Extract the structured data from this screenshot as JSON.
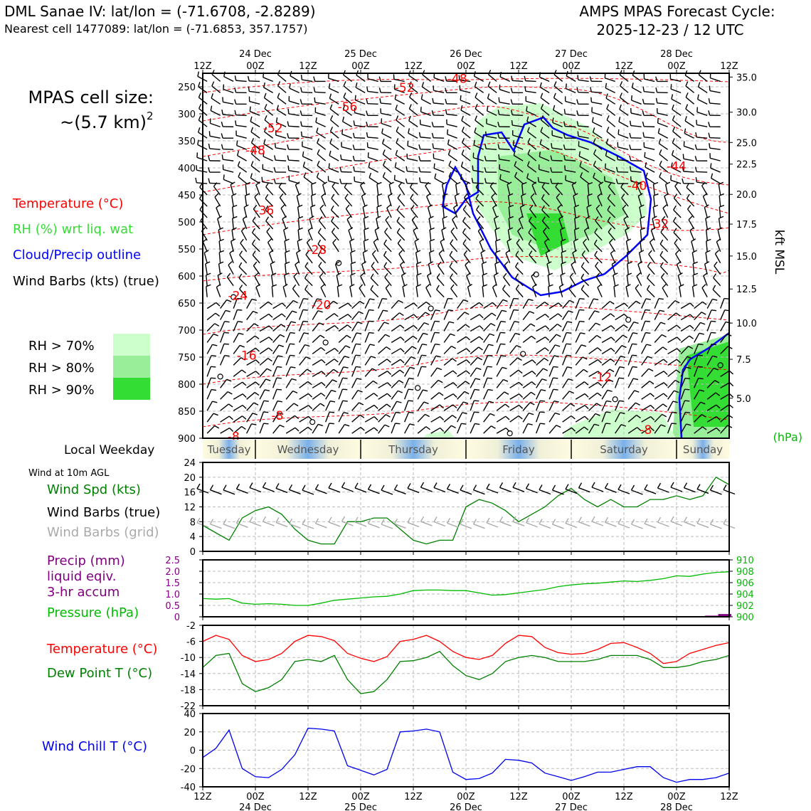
{
  "header": {
    "station_line": "DML Sanae IV: lat/lon = (-71.6708, -2.8289)",
    "cell_line": "Nearest cell 1477089: lat/lon = (-71.6853, 357.1757)",
    "cycle_title": "AMPS MPAS Forecast Cycle:",
    "cycle_time": "2025-12-23 / 12 UTC"
  },
  "legend": {
    "cell_size_label": "MPAS cell size:",
    "cell_size_value": "~(5.7 km)",
    "cell_size_exp": "2",
    "temperature": "Temperature (°C)",
    "rh": "RH (%) wrt liq. wat",
    "cloud": "Cloud/Precip outline",
    "barbs": "Wind Barbs (kts) (true)",
    "rh70": "RH > 70%",
    "rh80": "RH > 80%",
    "rh90": "RH > 90%",
    "local_weekday": "Local Weekday",
    "wind_10m": "Wind at 10m AGL",
    "wind_spd": "Wind Spd (kts)",
    "wind_barbs_true": "Wind Barbs (true)",
    "wind_barbs_grid": "Wind Barbs (grid)",
    "precip1": "Precip (mm)",
    "precip2": "liquid eqiv.",
    "precip3": "3-hr accum",
    "pressure": "Pressure (hPa)",
    "hpa_unit": "(hPa)",
    "temp2": "Temperature (°C)",
    "dewpoint": "Dew Point T (°C)",
    "windchill": "Wind Chill T (°C)",
    "kft": "kft MSL"
  },
  "colors": {
    "temp": "#ff0000",
    "rh_text": "#33dd33",
    "cloud": "#0000ff",
    "spd": "#008000",
    "grid_barb": "#aaaaaa",
    "precip": "#800080",
    "pres": "#00bb00",
    "chill": "#0000ee",
    "rh70": "#ccffcc",
    "rh80": "#99ee99",
    "rh90": "#33dd33"
  },
  "time_axis": {
    "top_hours": [
      "12Z",
      "00Z",
      "12Z",
      "00Z",
      "12Z",
      "00Z",
      "12Z",
      "00Z",
      "12Z",
      "00Z",
      "12Z"
    ],
    "day_labels": [
      "24 Dec",
      "25 Dec",
      "26 Dec",
      "27 Dec",
      "28 Dec"
    ],
    "weekdays": [
      "Tuesday",
      "Wednesday",
      "Thursday",
      "Friday",
      "Saturday",
      "Sunday"
    ]
  },
  "chart_data": [
    {
      "type": "heatmap",
      "name": "cross-section",
      "x": "forecast hour 0-120 (12Z 23 Dec to 12Z 28 Dec)",
      "ylabel": "pressure (hPa)",
      "ylim": [
        900,
        225
      ],
      "y_ticks": [
        250,
        300,
        350,
        400,
        450,
        500,
        550,
        600,
        650,
        700,
        750,
        800,
        850,
        900
      ],
      "right_ticks": [
        35.0,
        30.0,
        25.0,
        22.5,
        20.0,
        17.5,
        15.0,
        12.5,
        10.0,
        7.5,
        5.0
      ],
      "right_tick_p": [
        232,
        297,
        353,
        393,
        449,
        504,
        563,
        624,
        687,
        754,
        826
      ],
      "temp_labels": [
        {
          "t": 10,
          "p": 747,
          "text": "-16"
        },
        {
          "t": 8,
          "p": 636,
          "text": "-24"
        },
        {
          "t": 27,
          "p": 653,
          "text": "-20"
        },
        {
          "t": 26,
          "p": 551,
          "text": "-28"
        },
        {
          "t": 14,
          "p": 478,
          "text": "-36"
        },
        {
          "t": 12,
          "p": 367,
          "text": "-48"
        },
        {
          "t": 16,
          "p": 326,
          "text": "-52"
        },
        {
          "t": 33,
          "p": 287,
          "text": "-56"
        },
        {
          "t": 46,
          "p": 251,
          "text": "-52"
        },
        {
          "t": 58,
          "p": 235,
          "text": "-48"
        },
        {
          "t": 108,
          "p": 397,
          "text": "-44"
        },
        {
          "t": 99,
          "p": 433,
          "text": "-40"
        },
        {
          "t": 104,
          "p": 503,
          "text": "-32"
        },
        {
          "t": 91,
          "p": 787,
          "text": "-12"
        },
        {
          "t": 17,
          "p": 858,
          "text": "-8"
        },
        {
          "t": 101,
          "p": 884,
          "text": "-8"
        },
        {
          "t": 7,
          "p": 897,
          "text": "-8"
        }
      ]
    },
    {
      "type": "line",
      "name": "wind-10m",
      "ylim": [
        0,
        24
      ],
      "y_ticks": [
        0,
        4,
        8,
        12,
        16,
        20,
        24
      ],
      "x": [
        0,
        3,
        6,
        9,
        12,
        15,
        18,
        21,
        24,
        27,
        30,
        33,
        36,
        39,
        42,
        45,
        48,
        51,
        54,
        57,
        60,
        63,
        66,
        69,
        72,
        75,
        78,
        81,
        84,
        87,
        90,
        93,
        96,
        99,
        102,
        105,
        108,
        111,
        114,
        117,
        120
      ],
      "series": [
        {
          "name": "Wind Spd (kts)",
          "values": [
            7,
            5,
            3,
            9,
            11,
            12,
            10,
            6,
            3,
            2,
            2,
            8,
            8,
            9,
            9,
            6,
            3,
            2,
            3,
            3,
            12,
            14,
            13,
            11,
            8,
            10,
            12,
            15,
            17,
            14,
            12,
            14,
            12,
            12,
            14,
            14,
            15,
            14,
            15,
            20,
            18
          ]
        }
      ]
    },
    {
      "type": "bar+line",
      "name": "precip-pressure",
      "precip_ylim": [
        0,
        2.5
      ],
      "precip_ticks": [
        0,
        0.5,
        1.0,
        1.5,
        2.0,
        2.5
      ],
      "pressure_ylim": [
        900,
        910
      ],
      "pressure_ticks": [
        900,
        902,
        904,
        906,
        908,
        910
      ],
      "x": [
        0,
        3,
        6,
        9,
        12,
        15,
        18,
        21,
        24,
        27,
        30,
        33,
        36,
        39,
        42,
        45,
        48,
        51,
        54,
        57,
        60,
        63,
        66,
        69,
        72,
        75,
        78,
        81,
        84,
        87,
        90,
        93,
        96,
        99,
        102,
        105,
        108,
        111,
        114,
        117,
        120
      ],
      "pressure": [
        903.2,
        903.1,
        903.2,
        902.4,
        902.2,
        902.3,
        902.2,
        902.0,
        902.0,
        902.4,
        902.9,
        903.1,
        903.3,
        903.5,
        903.6,
        904.0,
        904.6,
        904.7,
        904.7,
        904.6,
        904.6,
        904.2,
        903.8,
        903.9,
        904.2,
        904.5,
        904.8,
        905.3,
        905.6,
        905.8,
        905.9,
        906.1,
        906.3,
        906.2,
        906.4,
        906.7,
        907.2,
        907.1,
        907.5,
        907.8,
        907.9
      ],
      "precip_bars": [
        {
          "t": 116,
          "mm": 0.05
        },
        {
          "t": 119,
          "mm": 0.12
        }
      ]
    },
    {
      "type": "line",
      "name": "temp-dewpoint",
      "ylim": [
        -22,
        -2
      ],
      "y_ticks": [
        -2,
        -6,
        -10,
        -14,
        -18,
        -22
      ],
      "x": [
        0,
        3,
        6,
        9,
        12,
        15,
        18,
        21,
        24,
        27,
        30,
        33,
        36,
        39,
        42,
        45,
        48,
        51,
        54,
        57,
        60,
        63,
        66,
        69,
        72,
        75,
        78,
        81,
        84,
        87,
        90,
        93,
        96,
        99,
        102,
        105,
        108,
        111,
        114,
        117,
        120
      ],
      "series": [
        {
          "name": "Temperature (°C)",
          "values": [
            -6,
            -4.5,
            -5.5,
            -9.5,
            -11,
            -10.5,
            -9,
            -6,
            -4.5,
            -4.8,
            -5.8,
            -9,
            -10.2,
            -11,
            -9.8,
            -6,
            -5.5,
            -4.5,
            -6,
            -8.5,
            -10,
            -10.5,
            -9.5,
            -6.5,
            -4.5,
            -4.8,
            -7.5,
            -8.8,
            -9.2,
            -9,
            -8,
            -6.5,
            -6.3,
            -7.5,
            -9,
            -11.5,
            -11,
            -9,
            -8,
            -7,
            -6.3
          ]
        },
        {
          "name": "Dew Point T (°C)",
          "values": [
            -12.5,
            -9.5,
            -9,
            -16.5,
            -18.5,
            -17.5,
            -15.5,
            -11,
            -10.5,
            -11,
            -9.5,
            -15.5,
            -19,
            -18.5,
            -15.5,
            -11,
            -10.8,
            -10,
            -8.5,
            -12,
            -14.5,
            -15.5,
            -14,
            -11,
            -10,
            -9.5,
            -10,
            -11,
            -11,
            -11,
            -10.5,
            -9.5,
            -9.5,
            -9.5,
            -10.5,
            -12.5,
            -12.5,
            -12,
            -11,
            -10.5,
            -9.5
          ]
        }
      ]
    },
    {
      "type": "line",
      "name": "wind-chill",
      "ylim": [
        -40,
        40
      ],
      "y_ticks": [
        -40,
        -20,
        0,
        20,
        40
      ],
      "x": [
        0,
        3,
        6,
        9,
        12,
        15,
        18,
        21,
        24,
        27,
        30,
        33,
        36,
        39,
        42,
        45,
        48,
        51,
        54,
        57,
        60,
        63,
        66,
        69,
        72,
        75,
        78,
        81,
        84,
        87,
        90,
        93,
        96,
        99,
        102,
        105,
        108,
        111,
        114,
        117,
        120
      ],
      "series": [
        {
          "name": "Wind Chill T (°C)",
          "values": [
            -8,
            2,
            22,
            -20,
            -29,
            -30,
            -21,
            -5,
            24,
            23,
            21,
            -17,
            -22,
            -27,
            -21,
            20,
            21,
            23,
            20,
            -24,
            -32,
            -31,
            -25,
            -10,
            -11,
            -14,
            -25,
            -29,
            -33,
            -29,
            -24,
            -24,
            -21,
            -18,
            -18,
            -30,
            -35,
            -32,
            -32,
            -30,
            -25
          ]
        }
      ]
    }
  ]
}
